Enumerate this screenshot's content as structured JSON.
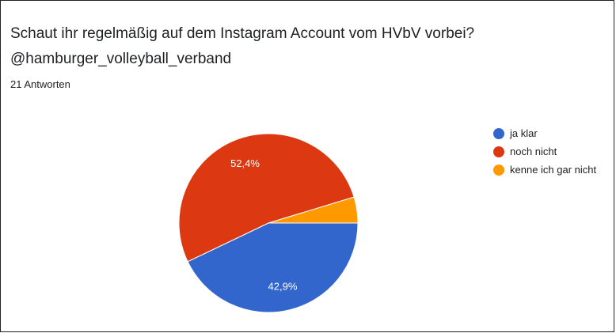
{
  "question": {
    "title": "Schaut ihr regelmäßig auf dem Instagram Account vom HVbV vorbei?",
    "subtitle": "@hamburger_volleyball_verband",
    "responses": "21 Antworten"
  },
  "chart_data": {
    "type": "pie",
    "title": "Schaut ihr regelmäßig auf dem Instagram Account vom HVbV vorbei?",
    "subtitle": "@hamburger_volleyball_verband",
    "legend_position": "right",
    "slices": [
      {
        "label": "ja klar",
        "value": 42.9,
        "display": "42,9%",
        "color": "#3366cc"
      },
      {
        "label": "noch nicht",
        "value": 52.4,
        "display": "52,4%",
        "color": "#dc3912"
      },
      {
        "label": "kenne ich gar nicht",
        "value": 4.7,
        "display": "",
        "color": "#ff9900"
      }
    ]
  }
}
